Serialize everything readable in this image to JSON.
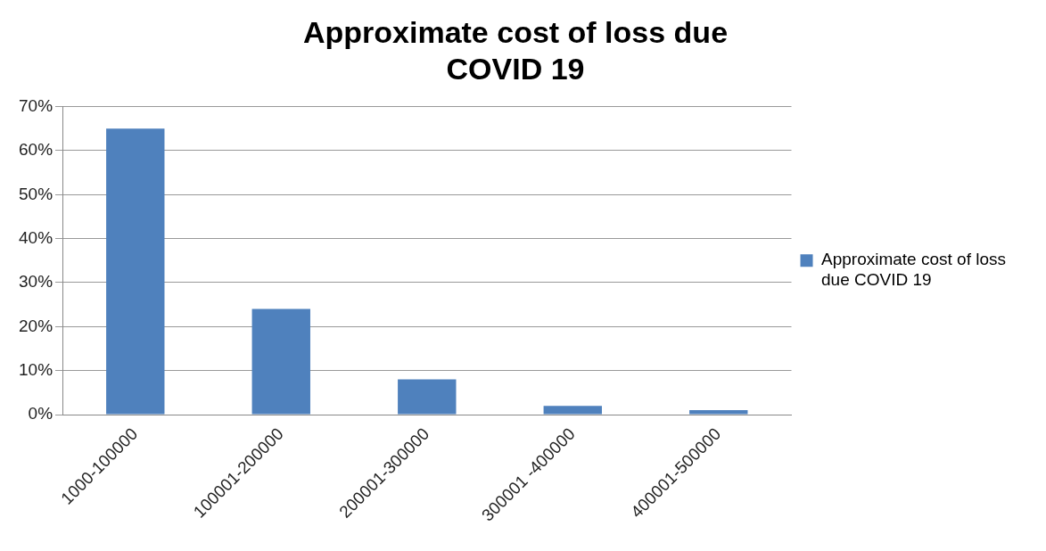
{
  "chart_data": {
    "type": "bar",
    "title": "Approximate cost of loss due COVID 19",
    "categories": [
      "1000-100000",
      "100001-200000",
      "200001-300000",
      "300001 -400000",
      "400001-500000"
    ],
    "series": [
      {
        "name": "Approximate cost of loss due COVID 19",
        "color": "#4f81bd",
        "values": [
          65,
          24,
          8,
          2,
          1
        ]
      }
    ],
    "ylim": [
      0,
      70
    ],
    "yticks": [
      {
        "value": 0,
        "label": "0%"
      },
      {
        "value": 10,
        "label": "10%"
      },
      {
        "value": 20,
        "label": "20%"
      },
      {
        "value": 30,
        "label": "30%"
      },
      {
        "value": 40,
        "label": "40%"
      },
      {
        "value": 50,
        "label": "50%"
      },
      {
        "value": 60,
        "label": "60%"
      },
      {
        "value": 70,
        "label": "70%"
      }
    ],
    "grid": "y",
    "legend": "right"
  }
}
